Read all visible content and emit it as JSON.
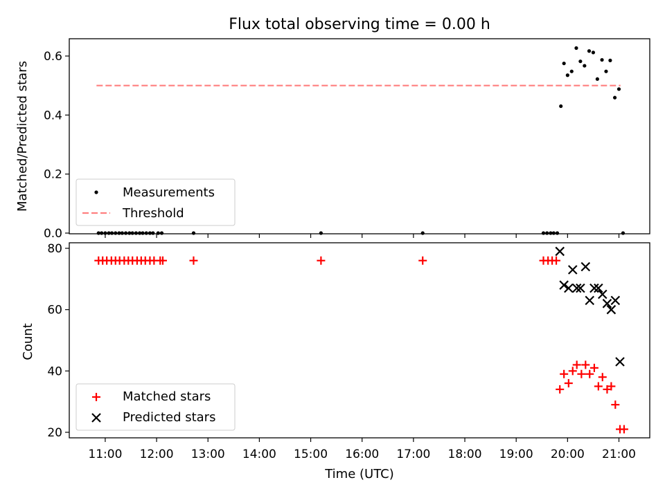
{
  "chart_data": {
    "title": "Flux total observing time = 0.00 h",
    "panels": [
      {
        "type": "scatter",
        "ylabel": "Matched/Predicted stars",
        "xlim": [
          10.3,
          21.6
        ],
        "ylim": [
          0.0,
          0.6
        ],
        "yticks": [
          "0.0",
          "0.2",
          "0.4",
          "0.6"
        ],
        "threshold": {
          "name": "Threshold",
          "y": 0.5,
          "x": [
            10.83,
            21.03
          ],
          "color": "#ff7f7f"
        },
        "series": [
          {
            "name": "Measurements",
            "color": "#000000",
            "marker": "dot",
            "points": [
              [
                10.87,
                0.0
              ],
              [
                10.93,
                0.0
              ],
              [
                11.0,
                0.0
              ],
              [
                11.07,
                0.0
              ],
              [
                11.13,
                0.0
              ],
              [
                11.2,
                0.0
              ],
              [
                11.27,
                0.0
              ],
              [
                11.33,
                0.0
              ],
              [
                11.4,
                0.0
              ],
              [
                11.47,
                0.0
              ],
              [
                11.53,
                0.0
              ],
              [
                11.6,
                0.0
              ],
              [
                11.67,
                0.0
              ],
              [
                11.73,
                0.0
              ],
              [
                11.8,
                0.0
              ],
              [
                11.87,
                0.0
              ],
              [
                11.93,
                0.0
              ],
              [
                12.03,
                0.0
              ],
              [
                12.1,
                0.0
              ],
              [
                12.72,
                0.0
              ],
              [
                15.2,
                0.0
              ],
              [
                17.18,
                0.0
              ],
              [
                19.53,
                0.0
              ],
              [
                19.6,
                0.0
              ],
              [
                19.67,
                0.0
              ],
              [
                19.73,
                0.0
              ],
              [
                19.8,
                0.0
              ],
              [
                19.87,
                0.43
              ],
              [
                19.93,
                0.575
              ],
              [
                20.0,
                0.535
              ],
              [
                20.08,
                0.548
              ],
              [
                20.17,
                0.627
              ],
              [
                20.25,
                0.582
              ],
              [
                20.33,
                0.567
              ],
              [
                20.42,
                0.617
              ],
              [
                20.5,
                0.612
              ],
              [
                20.58,
                0.522
              ],
              [
                20.67,
                0.587
              ],
              [
                20.75,
                0.548
              ],
              [
                20.83,
                0.585
              ],
              [
                20.92,
                0.459
              ],
              [
                21.0,
                0.488
              ],
              [
                21.08,
                0.0
              ]
            ]
          }
        ]
      },
      {
        "type": "scatter",
        "ylabel": "Count",
        "xlabel": "Time (UTC)",
        "xlim": [
          10.3,
          21.6
        ],
        "ylim": [
          20,
          80
        ],
        "yticks": [
          "20",
          "40",
          "60",
          "80"
        ],
        "xticks": [
          "11:00",
          "12:00",
          "13:00",
          "14:00",
          "15:00",
          "16:00",
          "17:00",
          "18:00",
          "19:00",
          "20:00",
          "21:00"
        ],
        "series": [
          {
            "name": "Matched stars",
            "color": "#ff0000",
            "marker": "plus",
            "points": [
              [
                10.87,
                76
              ],
              [
                10.95,
                76
              ],
              [
                11.03,
                76
              ],
              [
                11.12,
                76
              ],
              [
                11.2,
                76
              ],
              [
                11.28,
                76
              ],
              [
                11.37,
                76
              ],
              [
                11.45,
                76
              ],
              [
                11.53,
                76
              ],
              [
                11.62,
                76
              ],
              [
                11.7,
                76
              ],
              [
                11.78,
                76
              ],
              [
                11.87,
                76
              ],
              [
                11.95,
                76
              ],
              [
                12.07,
                76
              ],
              [
                12.12,
                76
              ],
              [
                12.72,
                76
              ],
              [
                15.2,
                76
              ],
              [
                17.18,
                76
              ],
              [
                19.53,
                76
              ],
              [
                19.62,
                76
              ],
              [
                19.7,
                76
              ],
              [
                19.78,
                76
              ],
              [
                19.85,
                34
              ],
              [
                19.93,
                39
              ],
              [
                20.02,
                36
              ],
              [
                20.1,
                40
              ],
              [
                20.18,
                42
              ],
              [
                20.27,
                39
              ],
              [
                20.35,
                42
              ],
              [
                20.43,
                39
              ],
              [
                20.52,
                41
              ],
              [
                20.6,
                35
              ],
              [
                20.68,
                38
              ],
              [
                20.77,
                34
              ],
              [
                20.85,
                35
              ],
              [
                20.93,
                29
              ],
              [
                21.02,
                21
              ],
              [
                21.1,
                21
              ]
            ]
          },
          {
            "name": "Predicted stars",
            "color": "#000000",
            "marker": "x",
            "points": [
              [
                19.85,
                79
              ],
              [
                19.93,
                68
              ],
              [
                20.02,
                67
              ],
              [
                20.1,
                73
              ],
              [
                20.18,
                67
              ],
              [
                20.25,
                67
              ],
              [
                20.35,
                74
              ],
              [
                20.43,
                63
              ],
              [
                20.52,
                67
              ],
              [
                20.6,
                67
              ],
              [
                20.68,
                65
              ],
              [
                20.77,
                62
              ],
              [
                20.85,
                60
              ],
              [
                20.93,
                63
              ],
              [
                21.02,
                43
              ]
            ]
          }
        ]
      }
    ]
  }
}
